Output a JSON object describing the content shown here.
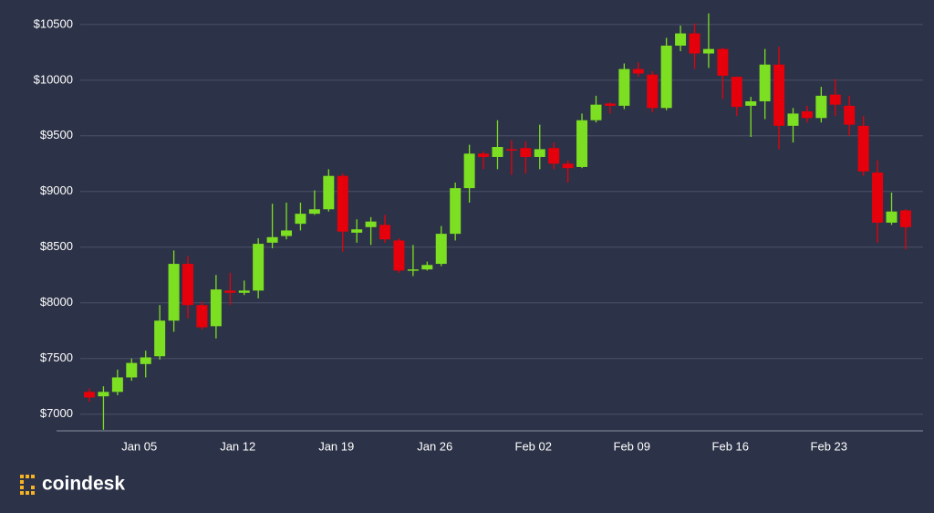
{
  "chart_data": {
    "type": "candlestick",
    "categories": [
      null,
      null,
      null,
      null,
      "Jan 05",
      null,
      null,
      null,
      null,
      null,
      null,
      "Jan 12",
      null,
      null,
      null,
      null,
      null,
      null,
      "Jan 19",
      null,
      null,
      null,
      null,
      null,
      null,
      "Jan 26",
      null,
      null,
      null,
      null,
      null,
      null,
      "Feb 02",
      null,
      null,
      null,
      null,
      null,
      null,
      "Feb 09",
      null,
      null,
      null,
      null,
      null,
      null,
      "Feb 16",
      null,
      null,
      null,
      null,
      null,
      null,
      "Feb 23",
      null,
      null,
      null,
      null,
      null
    ],
    "open": [
      7200,
      7160,
      7200,
      7330,
      7450,
      7520,
      7840,
      8350,
      7980,
      7790,
      8110,
      8090,
      8110,
      8540,
      8600,
      8710,
      8800,
      8840,
      9140,
      8630,
      8680,
      8700,
      8560,
      8290,
      8300,
      8350,
      8620,
      9030,
      9340,
      9310,
      9380,
      9390,
      9310,
      9390,
      9250,
      9220,
      9640,
      9790,
      9770,
      10100,
      10050,
      9750,
      10310,
      10420,
      10240,
      10280,
      10030,
      9770,
      9810,
      10140,
      9590,
      9720,
      9660,
      9870,
      9770,
      9590,
      9170,
      8720,
      8830
    ],
    "high": [
      7230,
      7250,
      7400,
      7500,
      7570,
      7980,
      8470,
      8420,
      8010,
      8250,
      8270,
      8200,
      8580,
      8890,
      8900,
      8900,
      9010,
      9200,
      9160,
      8750,
      8770,
      8790,
      8580,
      8520,
      8370,
      8690,
      9080,
      9420,
      9360,
      9640,
      9460,
      9450,
      9600,
      9440,
      9280,
      9700,
      9860,
      9800,
      10150,
      10160,
      10080,
      10380,
      10490,
      10510,
      10600,
      10290,
      10030,
      9850,
      10280,
      10300,
      9750,
      9770,
      9940,
      10010,
      9860,
      9680,
      9280,
      8990,
      8840
    ],
    "low": [
      7110,
      6860,
      7170,
      7300,
      7330,
      7490,
      7740,
      7860,
      7760,
      7680,
      7980,
      8070,
      8040,
      8490,
      8570,
      8650,
      8790,
      8820,
      8460,
      8540,
      8520,
      8540,
      8270,
      8240,
      8290,
      8330,
      8560,
      8900,
      9200,
      9200,
      9150,
      9160,
      9200,
      9200,
      9080,
      9210,
      9620,
      9700,
      9740,
      10030,
      9710,
      9730,
      10260,
      10100,
      10110,
      9830,
      9680,
      9490,
      9650,
      9380,
      9440,
      9620,
      9620,
      9680,
      9500,
      9140,
      8540,
      8700,
      8480
    ],
    "close": [
      7150,
      7200,
      7330,
      7460,
      7510,
      7840,
      8350,
      7980,
      7780,
      8120,
      8090,
      8110,
      8530,
      8590,
      8650,
      8800,
      8840,
      9140,
      8640,
      8660,
      8730,
      8570,
      8290,
      8300,
      8340,
      8620,
      9030,
      9340,
      9310,
      9400,
      9370,
      9310,
      9380,
      9250,
      9210,
      9640,
      9780,
      9770,
      10100,
      10060,
      9750,
      10310,
      10420,
      10240,
      10280,
      10040,
      9760,
      9810,
      10140,
      9590,
      9700,
      9660,
      9860,
      9780,
      9600,
      9180,
      8720,
      8820,
      8680
    ],
    "up_color": "#7ddf22",
    "down_color": "#e6000c",
    "ylim": [
      6850,
      10720
    ],
    "yticks": [
      {
        "value": 7000,
        "label": "$7000"
      },
      {
        "value": 7500,
        "label": "$7500"
      },
      {
        "value": 8000,
        "label": "$8000"
      },
      {
        "value": 8500,
        "label": "$8500"
      },
      {
        "value": 9000,
        "label": "$9000"
      },
      {
        "value": 9500,
        "label": "$9500"
      },
      {
        "value": 10000,
        "label": "$10000"
      },
      {
        "value": 10500,
        "label": "$10500"
      }
    ],
    "grid": true
  },
  "logo": "coindesk"
}
